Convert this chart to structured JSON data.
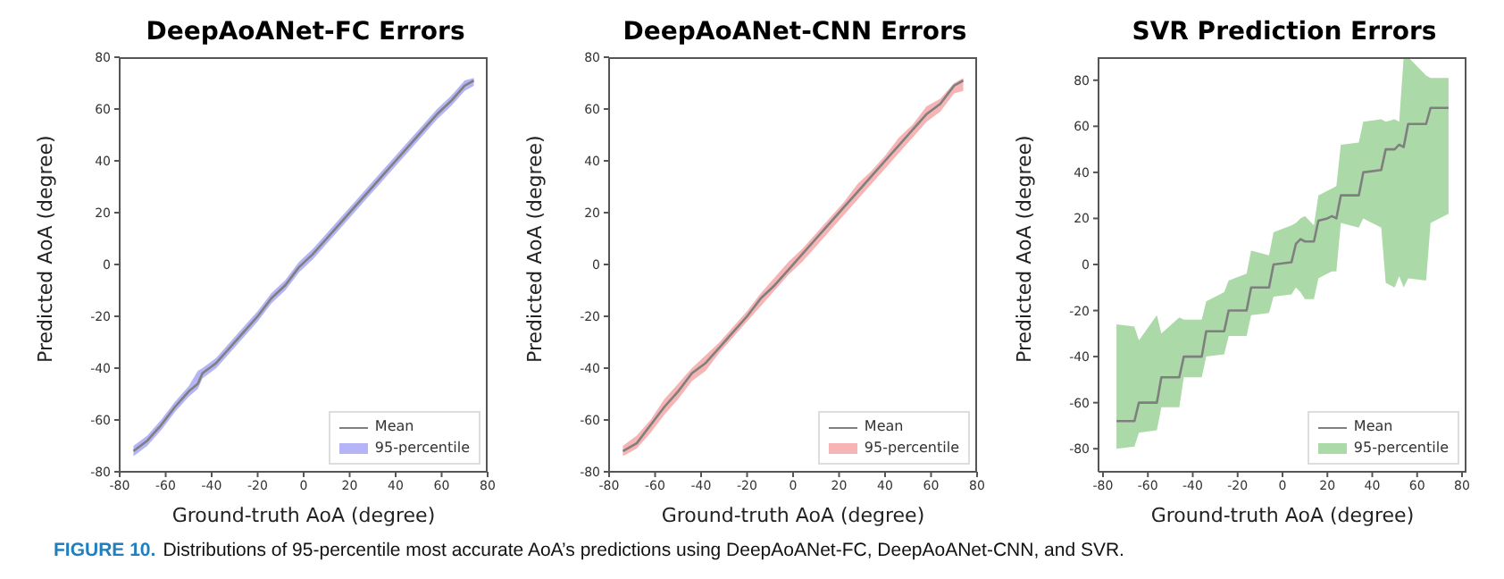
{
  "chart_data": [
    {
      "type": "line",
      "title": "DeepAoANet-FC Errors",
      "xlabel": "Ground-truth AoA (degree)",
      "ylabel": "Predicted AoA (degree)",
      "annotations": [
        "FIGURE 10.",
        "Distributions of 95-percentile most accurate AoA’s predictions using DeepAoANet-FC, DeepAoANet-CNN, and SVR.",
        "95-percentile"
      ],
      "xlim": [
        -80,
        80
      ],
      "ylim": [
        -80,
        80
      ],
      "xticks": [
        -80,
        -60,
        -40,
        -20,
        0,
        20,
        40,
        60,
        80
      ],
      "yticks": [
        -80,
        -60,
        -40,
        -20,
        0,
        20,
        40,
        60,
        80
      ],
      "legend": "bottom right",
      "color": "#b4b4f6",
      "x": [
        -74,
        -68,
        -62,
        -56,
        -50,
        -46,
        -44,
        -38,
        -32,
        -26,
        -20,
        -14,
        -8,
        -2,
        4,
        10,
        16,
        22,
        28,
        34,
        40,
        46,
        52,
        58,
        64,
        70,
        74
      ],
      "series": [
        {
          "name": "Mean",
          "color": "#7f7f7f",
          "values": [
            -72,
            -68,
            -62,
            -55,
            -49,
            -46,
            -42,
            -38,
            -32,
            -26,
            -20,
            -13,
            -8,
            -1,
            4,
            10,
            16,
            22,
            28,
            34,
            40,
            46,
            52,
            58,
            63,
            69,
            71
          ],
          "lower": [
            -74,
            -70,
            -64,
            -57,
            -51,
            -48,
            -44,
            -40,
            -34,
            -28,
            -22,
            -15,
            -10,
            -3,
            2,
            8,
            14,
            20,
            26,
            32,
            38,
            44,
            50,
            56,
            61,
            67,
            69
          ],
          "upper": [
            -70,
            -66,
            -60,
            -53,
            -47,
            -41,
            -40,
            -36,
            -30,
            -24,
            -18,
            -11,
            -6,
            1,
            6,
            12,
            18,
            24,
            30,
            36,
            42,
            48,
            54,
            60,
            65,
            71,
            72
          ]
        }
      ]
    },
    {
      "type": "line",
      "title": "DeepAoANet-CNN Errors",
      "xlabel": "Ground-truth AoA (degree)",
      "ylabel": "Predicted AoA (degree)",
      "annotations": [
        "95-percentile"
      ],
      "xlim": [
        -80,
        80
      ],
      "ylim": [
        -80,
        80
      ],
      "xticks": [
        -80,
        -60,
        -40,
        -20,
        0,
        20,
        40,
        60,
        80
      ],
      "yticks": [
        -80,
        -60,
        -40,
        -20,
        0,
        20,
        40,
        60,
        80
      ],
      "legend": "bottom right",
      "color": "#f7b4b4",
      "x": [
        -74,
        -68,
        -62,
        -56,
        -50,
        -44,
        -38,
        -32,
        -26,
        -20,
        -14,
        -8,
        -2,
        4,
        10,
        16,
        22,
        28,
        34,
        40,
        46,
        52,
        58,
        64,
        70,
        74
      ],
      "series": [
        {
          "name": "Mean",
          "color": "#7f7f7f",
          "values": [
            -72,
            -69,
            -62,
            -55,
            -49,
            -42,
            -38,
            -32,
            -26,
            -20,
            -13,
            -8,
            -2,
            4,
            10,
            16,
            22,
            28,
            34,
            40,
            46,
            52,
            58,
            62,
            69,
            71
          ],
          "lower": [
            -74,
            -71,
            -65,
            -58,
            -52,
            -45,
            -41,
            -34,
            -28,
            -22,
            -16,
            -10,
            -4,
            1,
            7,
            13,
            19,
            25,
            31,
            37,
            43,
            49,
            55,
            59,
            66,
            67
          ],
          "upper": [
            -70,
            -66,
            -60,
            -52,
            -46,
            -40,
            -35,
            -30,
            -24,
            -18,
            -11,
            -5,
            1,
            6,
            12,
            18,
            24,
            31,
            36,
            42,
            49,
            54,
            61,
            64,
            70,
            72
          ]
        }
      ]
    },
    {
      "type": "line",
      "title": "SVR Prediction Errors",
      "xlabel": "Ground-truth AoA (degree)",
      "ylabel": "Predicted AoA (degree)",
      "annotations": [
        "95-percentile"
      ],
      "xlim": [
        -82,
        82
      ],
      "ylim": [
        -90,
        90
      ],
      "xticks": [
        -80,
        -60,
        -40,
        -20,
        0,
        20,
        40,
        60,
        80
      ],
      "yticks": [
        -80,
        -60,
        -40,
        -20,
        0,
        20,
        40,
        60,
        80
      ],
      "legend": "bottom right",
      "color": "#acd9a8",
      "x": [
        -74,
        -66,
        -64,
        -56,
        -54,
        -46,
        -44,
        -36,
        -34,
        -26,
        -24,
        -16,
        -14,
        -6,
        -4,
        4,
        6,
        8,
        10,
        14,
        16,
        20,
        22,
        24,
        26,
        34,
        36,
        44,
        46,
        50,
        52,
        54,
        56,
        64,
        66,
        74
      ],
      "series": [
        {
          "name": "Mean",
          "color": "#7f7f7f",
          "values": [
            -68,
            -68,
            -60,
            -60,
            -49,
            -49,
            -40,
            -40,
            -29,
            -29,
            -20,
            -20,
            -10,
            -10,
            0,
            1,
            9,
            11,
            10,
            10,
            19,
            20,
            21,
            20,
            30,
            30,
            40,
            41,
            50,
            50,
            52,
            51,
            61,
            61,
            68,
            68
          ],
          "lower": [
            -80,
            -79,
            -73,
            -72,
            -62,
            -62,
            -49,
            -49,
            -40,
            -39,
            -31,
            -31,
            -22,
            -21,
            -14,
            -13,
            -10,
            -12,
            -15,
            -15,
            -6,
            -4,
            -3,
            -3,
            18,
            16,
            20,
            16,
            -8,
            -10,
            -5,
            -10,
            -6,
            -7,
            18,
            22
          ],
          "upper": [
            -26,
            -27,
            -33,
            -22,
            -30,
            -23,
            -24,
            -24,
            -16,
            -12,
            -7,
            -4,
            6,
            4,
            14,
            17,
            18,
            20,
            21,
            17,
            30,
            32,
            33,
            34,
            52,
            53,
            62,
            63,
            62,
            63,
            62,
            90,
            90,
            82,
            81,
            81
          ]
        }
      ]
    }
  ]
}
